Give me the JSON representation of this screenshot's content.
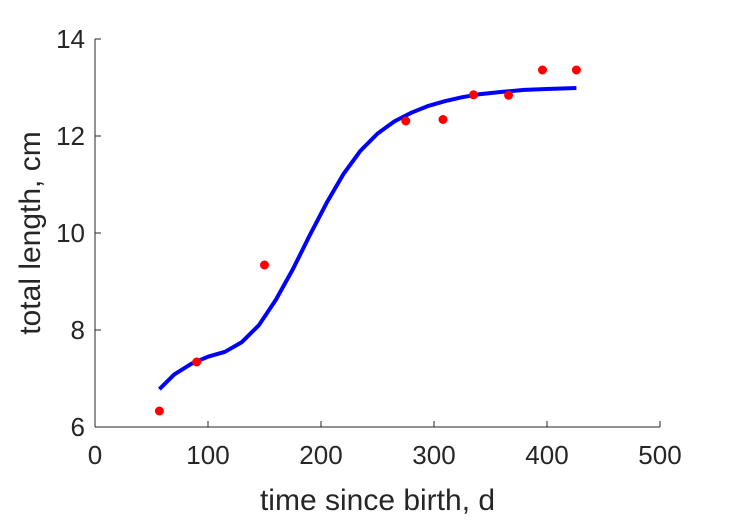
{
  "chart_data": {
    "type": "scatter",
    "title": "",
    "xlabel": "time since birth, d",
    "ylabel": "total length, cm",
    "xlim": [
      0,
      500
    ],
    "ylim": [
      6,
      14
    ],
    "x_ticks": [
      0,
      100,
      200,
      300,
      400,
      500
    ],
    "y_ticks": [
      6,
      8,
      10,
      12,
      14
    ],
    "grid": false,
    "box": false,
    "colors": {
      "points": "#ff0000",
      "fit": "#0000ff",
      "axis": "#262626"
    },
    "series": [
      {
        "type": "scatter",
        "points": [
          [
            57,
            6.33
          ],
          [
            90,
            7.34
          ],
          [
            150,
            9.34
          ],
          [
            275,
            12.31
          ],
          [
            308,
            12.34
          ],
          [
            335,
            12.85
          ],
          [
            366,
            12.84
          ],
          [
            396,
            13.36
          ],
          [
            426,
            13.36
          ]
        ]
      },
      {
        "type": "line",
        "points": [
          [
            57,
            6.78
          ],
          [
            70,
            7.08
          ],
          [
            85,
            7.3
          ],
          [
            100,
            7.45
          ],
          [
            115,
            7.55
          ],
          [
            130,
            7.75
          ],
          [
            145,
            8.1
          ],
          [
            160,
            8.62
          ],
          [
            175,
            9.25
          ],
          [
            190,
            9.95
          ],
          [
            205,
            10.62
          ],
          [
            220,
            11.22
          ],
          [
            235,
            11.7
          ],
          [
            250,
            12.05
          ],
          [
            265,
            12.3
          ],
          [
            280,
            12.48
          ],
          [
            295,
            12.62
          ],
          [
            310,
            12.72
          ],
          [
            325,
            12.8
          ],
          [
            340,
            12.86
          ],
          [
            360,
            12.91
          ],
          [
            380,
            12.95
          ],
          [
            400,
            12.97
          ],
          [
            426,
            12.99
          ]
        ]
      }
    ]
  }
}
